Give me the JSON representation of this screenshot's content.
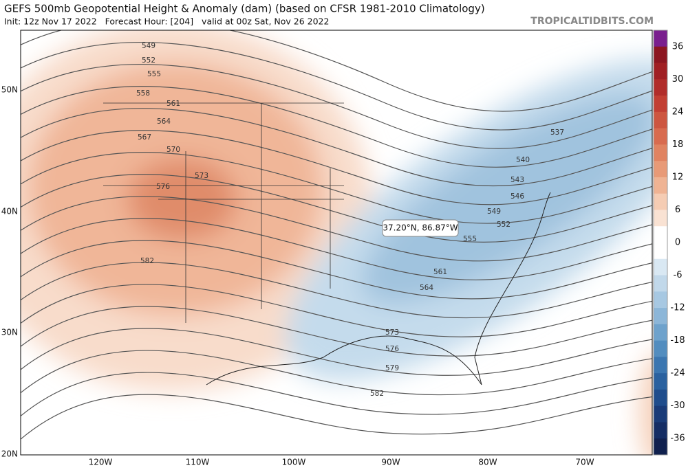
{
  "header": {
    "title": "GEFS 500mb Geopotential Height & Anomaly (dam) (based on CFSR 1981-2010 Climatology)",
    "subtitle": "Init: 12z Nov 17 2022   Forecast Hour: [204]   valid at 00z Sat, Nov 26 2022",
    "brand": "TROPICALTIDBITS.COM"
  },
  "map": {
    "lat_labels": [
      "50N",
      "40N",
      "30N",
      "20N"
    ],
    "lon_labels": [
      "120W",
      "110W",
      "100W",
      "90W",
      "80W",
      "70W"
    ],
    "contour_labels": [
      "549",
      "552",
      "555",
      "558",
      "561",
      "564",
      "567",
      "570",
      "573",
      "576",
      "582",
      "537",
      "540",
      "543",
      "546",
      "549",
      "552",
      "555",
      "561",
      "564",
      "573",
      "576",
      "579",
      "582"
    ],
    "tooltip": "37.20°N, 86.87°W"
  },
  "colorbar": {
    "ticks": [
      "36",
      "30",
      "24",
      "18",
      "12",
      "6",
      "0",
      "-6",
      "-12",
      "-18",
      "-24",
      "-30",
      "-36"
    ]
  }
}
